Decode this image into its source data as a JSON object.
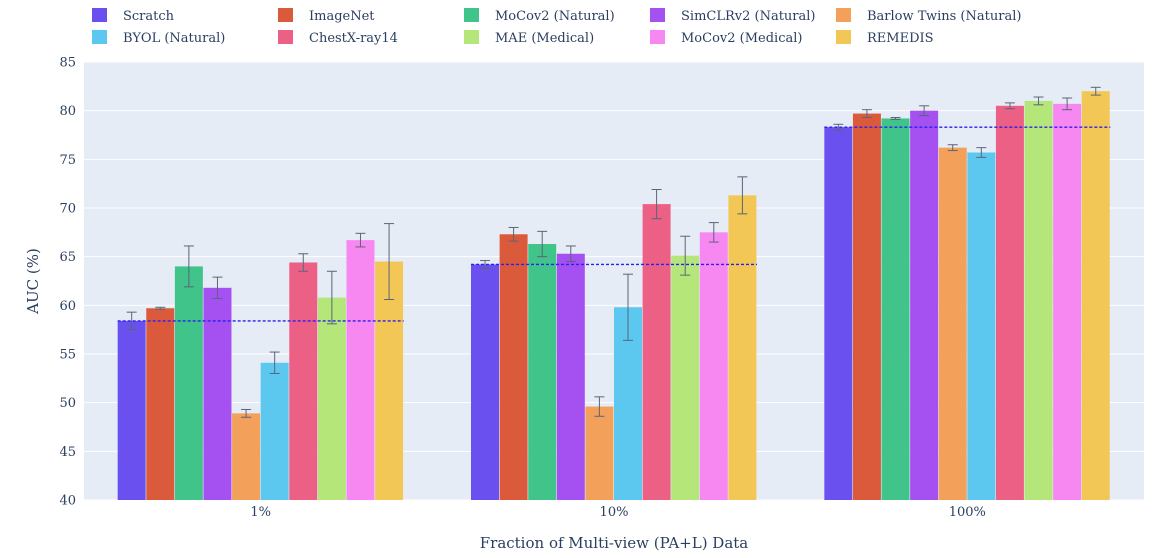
{
  "chart_data": {
    "type": "bar",
    "title": "",
    "xlabel": "Fraction of Multi-view (PA+L) Data",
    "ylabel": "AUC (%)",
    "ylim": [
      40,
      85
    ],
    "yticks": [
      40,
      45,
      50,
      55,
      60,
      65,
      70,
      75,
      80,
      85
    ],
    "grid": true,
    "legend_position": "top",
    "categories": [
      "1%",
      "10%",
      "100%"
    ],
    "series": [
      {
        "name": "Scratch",
        "color": "#6b50f0",
        "values": [
          58.4,
          64.2,
          78.3
        ],
        "err": [
          0.9,
          0.4,
          0.3
        ]
      },
      {
        "name": "ImageNet",
        "color": "#dc5a3c",
        "values": [
          59.7,
          67.3,
          79.7
        ],
        "err": [
          0.1,
          0.7,
          0.4
        ]
      },
      {
        "name": "MoCov2 (Natural)",
        "color": "#40c48a",
        "values": [
          64.0,
          66.3,
          79.2
        ],
        "err": [
          2.1,
          1.3,
          0.1
        ]
      },
      {
        "name": "SimCLRv2 (Natural)",
        "color": "#a550f0",
        "values": [
          61.8,
          65.3,
          80.0
        ],
        "err": [
          1.1,
          0.8,
          0.5
        ]
      },
      {
        "name": "Barlow Twins (Natural)",
        "color": "#f2a05a",
        "values": [
          48.9,
          49.6,
          76.2
        ],
        "err": [
          0.4,
          1.0,
          0.3
        ]
      },
      {
        "name": "BYOL (Natural)",
        "color": "#5cc8ef",
        "values": [
          54.1,
          59.8,
          75.7
        ],
        "err": [
          1.1,
          3.4,
          0.5
        ]
      },
      {
        "name": "ChestX-ray14",
        "color": "#ec6086",
        "values": [
          64.4,
          70.4,
          80.5
        ],
        "err": [
          0.9,
          1.5,
          0.3
        ]
      },
      {
        "name": "MAE (Medical)",
        "color": "#b4e67a",
        "values": [
          60.8,
          65.1,
          81.0
        ],
        "err": [
          2.7,
          2.0,
          0.4
        ]
      },
      {
        "name": "MoCov2 (Medical)",
        "color": "#f788f2",
        "values": [
          66.7,
          67.5,
          80.7
        ],
        "err": [
          0.7,
          1.0,
          0.6
        ]
      },
      {
        "name": "REMEDIS",
        "color": "#f3c756",
        "values": [
          64.5,
          71.3,
          82.0
        ],
        "err": [
          3.9,
          1.9,
          0.4
        ]
      }
    ],
    "baseline": {
      "series": "Scratch",
      "values": [
        58.4,
        64.2,
        78.3
      ],
      "color": "#2a1ff0",
      "style": "dotted"
    }
  }
}
